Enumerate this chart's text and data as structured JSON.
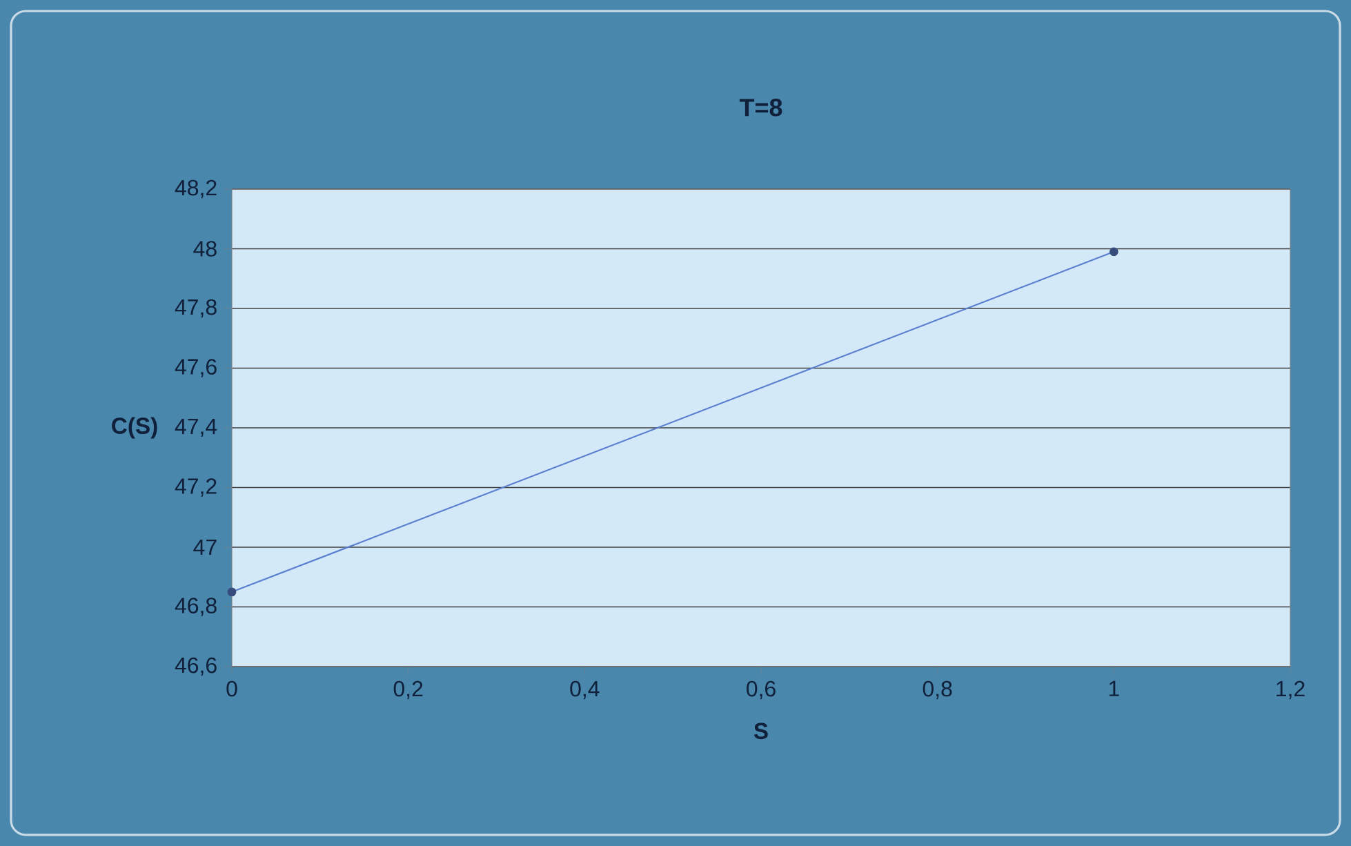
{
  "chart_data": {
    "type": "line",
    "title": "T=8",
    "xlabel": "S",
    "ylabel": "C(S)",
    "x": [
      0,
      1
    ],
    "series": [
      {
        "color": "#5a7fd0",
        "values": [
          46.85,
          47.99
        ]
      }
    ],
    "xlim": [
      0,
      1.2
    ],
    "xticks": [
      0,
      {
        "value": 0.2,
        "label": "0,2"
      },
      {
        "value": 0.4,
        "label": "0,4"
      },
      {
        "value": 0.6,
        "label": "0,6"
      },
      {
        "value": 0.8,
        "label": "0,8"
      },
      1,
      {
        "value": 1.2,
        "label": "1,2"
      }
    ],
    "ylim": [
      46.6,
      48.2
    ],
    "yticks": [
      {
        "value": 46.6,
        "label": "46,6"
      },
      {
        "value": 46.8,
        "label": "46,8"
      },
      47,
      {
        "value": 47.2,
        "label": "47,2"
      },
      {
        "value": 47.4,
        "label": "47,4"
      },
      {
        "value": 47.6,
        "label": "47,6"
      },
      {
        "value": 47.8,
        "label": "47,8"
      },
      48,
      {
        "value": 48.2,
        "label": "48,2"
      }
    ],
    "grid": "y",
    "marker": "circle",
    "line_style": "solid"
  }
}
